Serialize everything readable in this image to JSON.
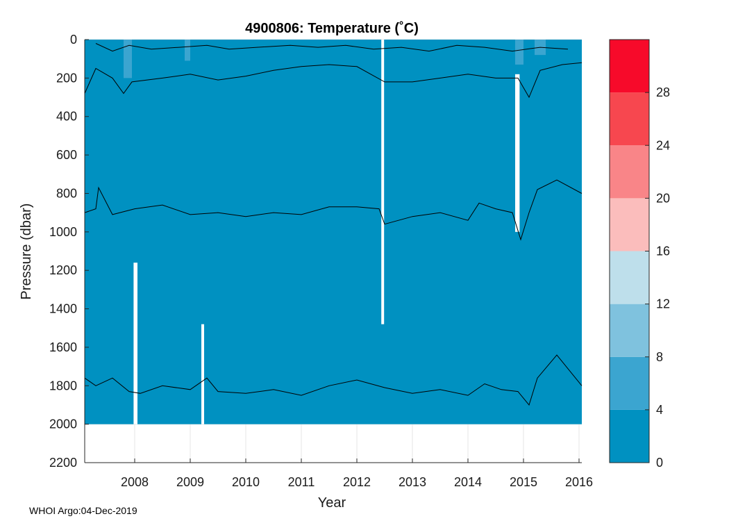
{
  "chart_data": {
    "type": "heatmap",
    "title": "4900806:  Temperature (˚C)",
    "xlabel": "Year",
    "ylabel": "Pressure (dbar)",
    "xlim": [
      2007.1,
      2016.05
    ],
    "ylim": [
      0,
      2200
    ],
    "x_ticks": [
      "2008",
      "2009",
      "2010",
      "2011",
      "2012",
      "2013",
      "2014",
      "2015",
      "2016"
    ],
    "y_ticks": [
      "0",
      "200",
      "400",
      "600",
      "800",
      "1000",
      "1200",
      "1400",
      "1600",
      "1800",
      "2000",
      "2200"
    ],
    "y_reversed": true,
    "grid": true,
    "data_max_pressure": 2000,
    "dominant_temperature_band": "0-4",
    "colorbar": {
      "range": [
        0,
        32
      ],
      "tick_labels": [
        "0",
        "4",
        "8",
        "12",
        "16",
        "20",
        "24",
        "28"
      ],
      "bands": [
        {
          "range": [
            0,
            4
          ],
          "color": "#0091c1"
        },
        {
          "range": [
            4,
            8
          ],
          "color": "#3ba5d0"
        },
        {
          "range": [
            8,
            12
          ],
          "color": "#7fc2de"
        },
        {
          "range": [
            12,
            16
          ],
          "color": "#bedfeb"
        },
        {
          "range": [
            16,
            20
          ],
          "color": "#fbbdbc"
        },
        {
          "range": [
            20,
            24
          ],
          "color": "#f98588"
        },
        {
          "range": [
            24,
            28
          ],
          "color": "#f7474f"
        },
        {
          "range": [
            28,
            32
          ],
          "color": "#f70a2a"
        }
      ]
    },
    "contour_lines": [
      {
        "points": [
          [
            2007.1,
            900
          ],
          [
            2007.3,
            880
          ],
          [
            2007.35,
            770
          ],
          [
            2007.6,
            910
          ],
          [
            2008.0,
            880
          ],
          [
            2008.5,
            860
          ],
          [
            2009.0,
            910
          ],
          [
            2009.5,
            900
          ],
          [
            2010.0,
            920
          ],
          [
            2010.5,
            900
          ],
          [
            2011.0,
            910
          ],
          [
            2011.5,
            870
          ],
          [
            2012.0,
            870
          ],
          [
            2012.4,
            880
          ],
          [
            2012.5,
            960
          ],
          [
            2013.0,
            920
          ],
          [
            2013.5,
            900
          ],
          [
            2014.0,
            940
          ],
          [
            2014.2,
            850
          ],
          [
            2014.5,
            880
          ],
          [
            2014.8,
            900
          ],
          [
            2014.95,
            1040
          ],
          [
            2015.1,
            900
          ],
          [
            2015.25,
            780
          ],
          [
            2015.6,
            730
          ],
          [
            2016.05,
            800
          ]
        ]
      },
      {
        "points": [
          [
            2007.1,
            1760
          ],
          [
            2007.3,
            1800
          ],
          [
            2007.6,
            1760
          ],
          [
            2007.9,
            1830
          ],
          [
            2008.1,
            1840
          ],
          [
            2008.5,
            1800
          ],
          [
            2009.0,
            1820
          ],
          [
            2009.3,
            1760
          ],
          [
            2009.5,
            1830
          ],
          [
            2010.0,
            1840
          ],
          [
            2010.5,
            1820
          ],
          [
            2011.0,
            1850
          ],
          [
            2011.5,
            1800
          ],
          [
            2012.0,
            1770
          ],
          [
            2012.5,
            1810
          ],
          [
            2013.0,
            1840
          ],
          [
            2013.5,
            1820
          ],
          [
            2014.0,
            1850
          ],
          [
            2014.3,
            1790
          ],
          [
            2014.6,
            1820
          ],
          [
            2014.9,
            1830
          ],
          [
            2015.1,
            1900
          ],
          [
            2015.25,
            1760
          ],
          [
            2015.6,
            1640
          ],
          [
            2016.05,
            1800
          ]
        ]
      },
      {
        "points": [
          [
            2007.1,
            280
          ],
          [
            2007.3,
            150
          ],
          [
            2007.6,
            200
          ],
          [
            2007.8,
            280
          ],
          [
            2007.95,
            220
          ],
          [
            2008.5,
            200
          ],
          [
            2009.0,
            180
          ],
          [
            2009.5,
            210
          ],
          [
            2010.0,
            190
          ],
          [
            2010.5,
            160
          ],
          [
            2011.0,
            140
          ],
          [
            2011.5,
            130
          ],
          [
            2012.0,
            140
          ],
          [
            2012.5,
            220
          ],
          [
            2013.0,
            220
          ],
          [
            2013.5,
            200
          ],
          [
            2014.0,
            180
          ],
          [
            2014.5,
            200
          ],
          [
            2014.9,
            200
          ],
          [
            2015.1,
            300
          ],
          [
            2015.3,
            160
          ],
          [
            2015.7,
            130
          ],
          [
            2016.05,
            120
          ]
        ]
      },
      {
        "points": [
          [
            2007.3,
            20
          ],
          [
            2007.6,
            60
          ],
          [
            2007.9,
            30
          ],
          [
            2008.3,
            50
          ],
          [
            2008.8,
            40
          ],
          [
            2009.3,
            30
          ],
          [
            2009.7,
            50
          ],
          [
            2010.2,
            40
          ],
          [
            2010.8,
            30
          ],
          [
            2011.3,
            40
          ],
          [
            2011.8,
            30
          ],
          [
            2012.3,
            50
          ],
          [
            2012.8,
            40
          ],
          [
            2013.3,
            60
          ],
          [
            2013.8,
            30
          ],
          [
            2014.3,
            40
          ],
          [
            2014.8,
            60
          ],
          [
            2015.3,
            40
          ],
          [
            2015.8,
            50
          ]
        ]
      }
    ],
    "gaps": [
      {
        "x_range": [
          2012.44,
          2012.49
        ],
        "depth_range": [
          0,
          1480
        ]
      },
      {
        "x_range": [
          2014.85,
          2014.93
        ],
        "depth_range": [
          180,
          1000
        ]
      },
      {
        "x_range": [
          2007.98,
          2008.05
        ],
        "depth_range": [
          1160,
          2000
        ]
      },
      {
        "x_range": [
          2009.2,
          2009.25
        ],
        "depth_range": [
          1480,
          2000
        ]
      }
    ]
  },
  "footer": {
    "text": "WHOI Argo:04-Dec-2019"
  }
}
